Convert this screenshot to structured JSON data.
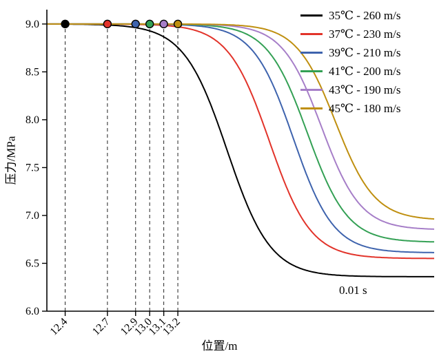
{
  "figure": {
    "xlabel": "位置/m",
    "ylabel": "压力/MPa",
    "annotation": "0.01 s"
  },
  "chart_data": {
    "type": "line",
    "title": "",
    "xlabel": "位置/m",
    "ylabel": "压力/MPa",
    "xlim": [
      12.27,
      15.02
    ],
    "ylim": [
      6.0,
      9.15
    ],
    "x_ticks": [
      "12.4",
      "12.7",
      "12.9",
      "13.0",
      "13.1",
      "13.2"
    ],
    "y_ticks": [
      "6.0",
      "6.5",
      "7.0",
      "7.5",
      "8.0",
      "8.5",
      "9.0"
    ],
    "grid": false,
    "legend_position": "top-right",
    "annotation": "0.01 s",
    "guide_lines": "dashed vertical lines at each x tick from 6.0 up to 9.0 MPa",
    "series": [
      {
        "name": "35℃ - 260 m/s",
        "color": "#000000",
        "marker_x": 12.4,
        "p_initial": 9.0,
        "p_final": 6.36,
        "drop_midpoint": 13.55,
        "steepness": 6.5
      },
      {
        "name": "37℃ - 230 m/s",
        "color": "#e2332a",
        "marker_x": 12.7,
        "p_initial": 9.0,
        "p_final": 6.55,
        "drop_midpoint": 13.85,
        "steepness": 6.8
      },
      {
        "name": "39℃ - 210 m/s",
        "color": "#3e63ad",
        "marker_x": 12.9,
        "p_initial": 9.0,
        "p_final": 6.61,
        "drop_midpoint": 14.02,
        "steepness": 7.0
      },
      {
        "name": "41℃ - 200 m/s",
        "color": "#33a054",
        "marker_x": 13.0,
        "p_initial": 9.0,
        "p_final": 6.72,
        "drop_midpoint": 14.12,
        "steepness": 7.0
      },
      {
        "name": "43℃ - 190 m/s",
        "color": "#a67ec8",
        "marker_x": 13.1,
        "p_initial": 9.0,
        "p_final": 6.85,
        "drop_midpoint": 14.22,
        "steepness": 7.2
      },
      {
        "name": "45℃ - 180 m/s",
        "color": "#bf8f0f",
        "marker_x": 13.2,
        "p_initial": 9.0,
        "p_final": 6.95,
        "drop_midpoint": 14.32,
        "steepness": 7.2
      }
    ]
  }
}
